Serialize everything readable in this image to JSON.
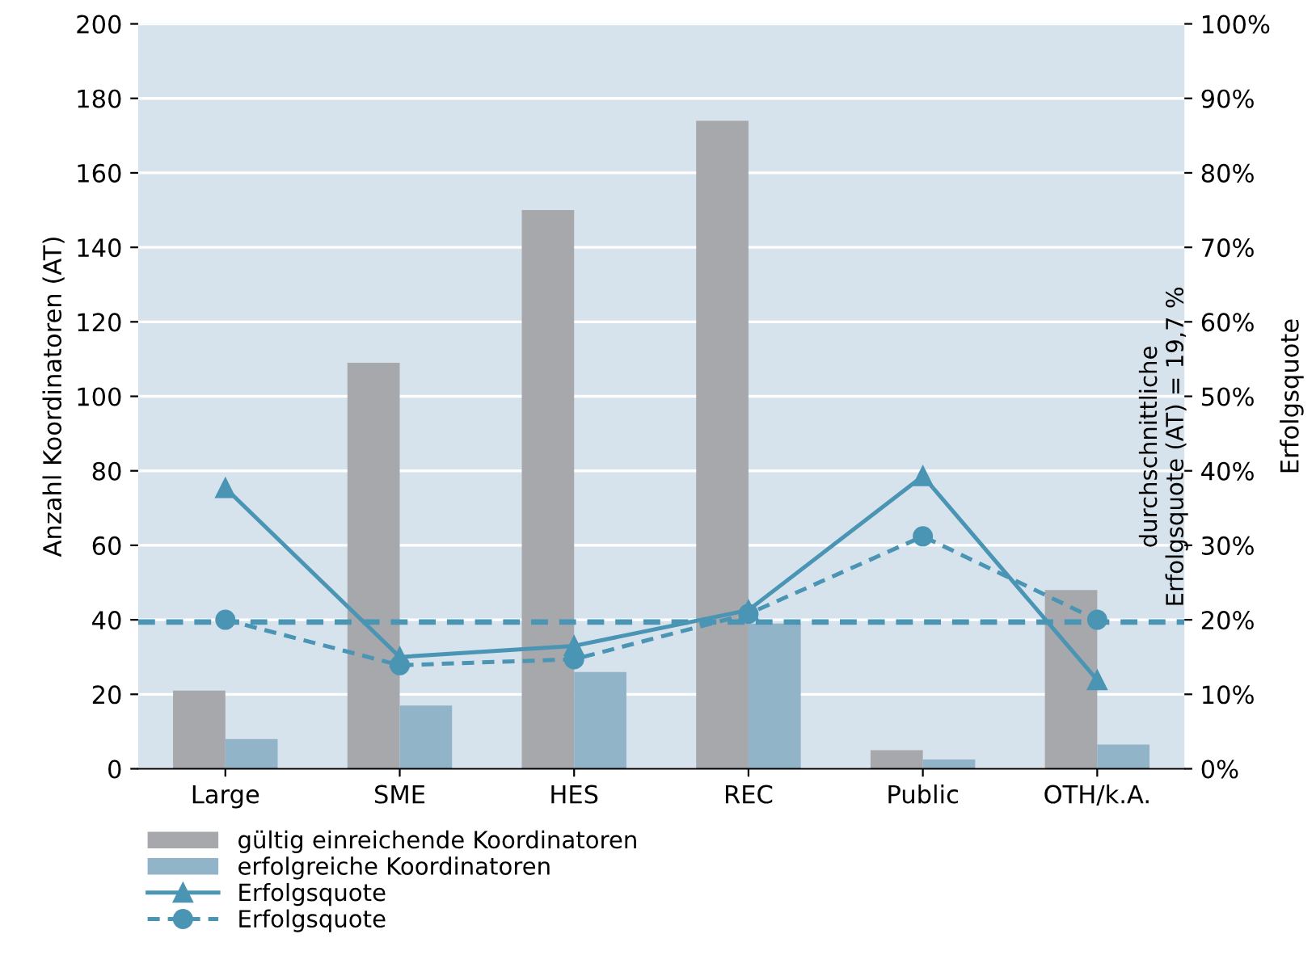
{
  "chart_data": {
    "type": "bar",
    "ylabel": "Anzahl Koordinatoren (AT)",
    "y2label": "Erfolgsquote",
    "categories": [
      "Large",
      "SME",
      "HES",
      "REC",
      "Public",
      "OTH/k.A."
    ],
    "series": [
      {
        "name": "gültig einreichende Koordinatoren",
        "color": "#a7a8ab",
        "values": [
          21,
          109,
          150,
          174,
          5,
          48
        ]
      },
      {
        "name": "erfolgreiche Koordinatoren",
        "color": "#92b4c9",
        "values": [
          8,
          17,
          26,
          39,
          2.5,
          6.5
        ]
      },
      {
        "name": "Erfolgsquote",
        "type": "line",
        "axis": "y2",
        "color": "#4a94b4",
        "marker": "triangle",
        "line_style": "solid",
        "values": [
          37.7,
          15,
          16.5,
          21.3,
          39.3,
          11.9
        ]
      },
      {
        "name": "Erfolgsquote",
        "type": "line",
        "axis": "y2",
        "color": "#4a94b4",
        "marker": "circle",
        "line_style": "dashed",
        "values": [
          20,
          13.9,
          14.7,
          20.8,
          31.2,
          20
        ]
      }
    ],
    "ylim": [
      0,
      200
    ],
    "yticks": [
      0,
      20,
      40,
      60,
      80,
      100,
      120,
      140,
      160,
      180,
      200
    ],
    "y2lim": [
      0,
      100
    ],
    "y2ticks": [
      {
        "value": 0,
        "label": "0%"
      },
      {
        "value": 10,
        "label": "10%"
      },
      {
        "value": 20,
        "label": "20%"
      },
      {
        "value": 30,
        "label": "30%"
      },
      {
        "value": 40,
        "label": "40%"
      },
      {
        "value": 50,
        "label": "50%"
      },
      {
        "value": 60,
        "label": "60%"
      },
      {
        "value": 70,
        "label": "70%"
      },
      {
        "value": 80,
        "label": "80%"
      },
      {
        "value": 90,
        "label": "90%"
      },
      {
        "value": 100,
        "label": "100%"
      }
    ],
    "ref_lines": [
      {
        "axis": "y2",
        "value": 19.7,
        "label": "durchschnittliche\nErfolgsquote (AT) = 19,7 %",
        "color": "#4a94b4",
        "line_style": "dashed"
      }
    ],
    "grid": "y",
    "legend": "bottom left"
  }
}
